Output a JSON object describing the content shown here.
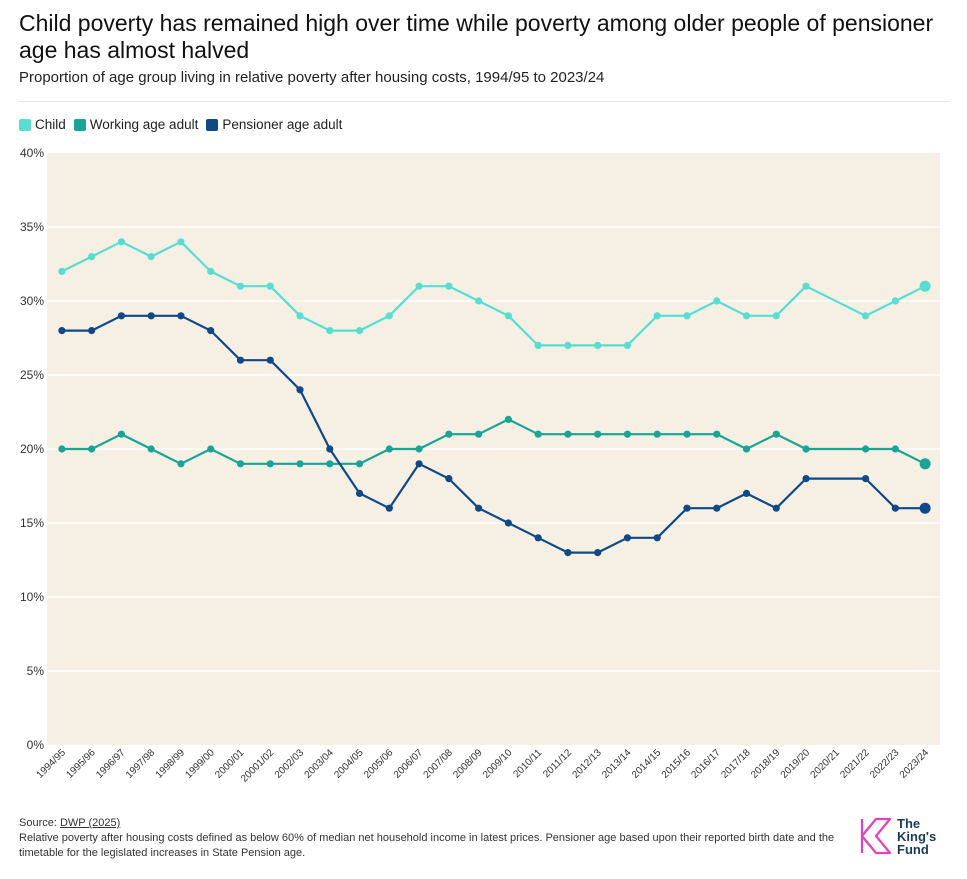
{
  "title": "Child poverty has remained high over time while poverty among older people of pensioner age has almost halved",
  "subtitle": "Proportion of age group living in relative poverty after housing costs, 1994/95 to 2023/24",
  "footer": {
    "source_prefix": "Source: ",
    "source_link": "DWP (2025)",
    "note": "Relative poverty after housing costs defined as below 60% of median net household income in latest prices. Pensioner age based upon their reported birth date and the timetable for the legislated increases in State Pension age."
  },
  "logo": {
    "line1": "The",
    "line2": "King's",
    "line3": "Fund"
  },
  "colors": {
    "child": "#56ded2",
    "working": "#16a596",
    "pensioner": "#0e4a87",
    "plot_bg": "#f5efe4",
    "grid": "#ffffff",
    "logo_accent": "#e83fbf"
  },
  "chart_data": {
    "type": "line",
    "title": "Child poverty has remained high over time while poverty among older people of pensioner age has almost halved",
    "subtitle": "Proportion of age group living in relative poverty after housing costs, 1994/95 to 2023/24",
    "xlabel": "",
    "ylabel": "",
    "ylim": [
      0,
      40
    ],
    "yticks": [
      "0%",
      "5%",
      "10%",
      "15%",
      "20%",
      "25%",
      "30%",
      "35%",
      "40%"
    ],
    "grid": true,
    "legend_position": "top-left",
    "categories": [
      "1994/95",
      "1995/96",
      "1996/97",
      "1997/98",
      "1998/99",
      "1999/00",
      "2000/01",
      "20001/02",
      "2002/03",
      "2003/04",
      "2004/05",
      "2005/06",
      "2006/07",
      "2007/08",
      "2008/09",
      "2009/10",
      "2010/11",
      "2011/12",
      "2012/13",
      "2013/14",
      "2014/15",
      "2015/16",
      "2016/17",
      "2017/18",
      "2018/19",
      "2019/20",
      "2020/21",
      "2021/22",
      "2022/23",
      "2023/24"
    ],
    "series": [
      {
        "name": "Child",
        "color": "#56ded2",
        "values": [
          32,
          33,
          34,
          33,
          34,
          32,
          31,
          31,
          29,
          28,
          28,
          29,
          31,
          31,
          30,
          29,
          27,
          27,
          27,
          27,
          29,
          29,
          30,
          29,
          29,
          31,
          null,
          29,
          30,
          31
        ]
      },
      {
        "name": "Working age adult",
        "color": "#16a596",
        "values": [
          20,
          20,
          21,
          20,
          19,
          20,
          19,
          19,
          19,
          19,
          19,
          20,
          20,
          21,
          21,
          22,
          21,
          21,
          21,
          21,
          21,
          21,
          21,
          20,
          21,
          20,
          null,
          20,
          20,
          19
        ]
      },
      {
        "name": "Pensioner age adult",
        "color": "#0e4a87",
        "values": [
          28,
          28,
          29,
          29,
          29,
          28,
          26,
          26,
          24,
          20,
          17,
          16,
          19,
          18,
          16,
          15,
          14,
          13,
          13,
          14,
          14,
          16,
          16,
          17,
          16,
          18,
          null,
          18,
          16,
          16
        ]
      }
    ]
  }
}
